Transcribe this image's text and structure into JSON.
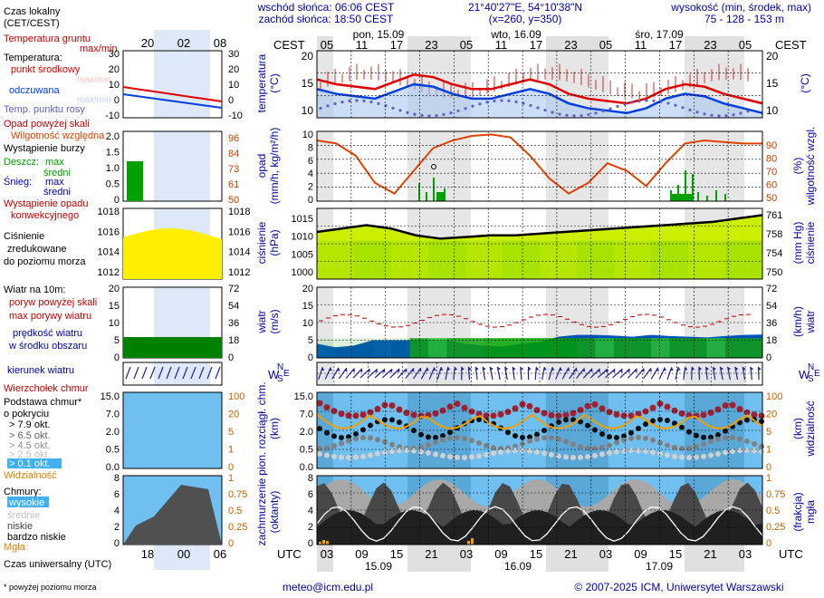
{
  "header": {
    "sunrise": "wschód słońca: 06:06 CEST",
    "sunset": "zachód słońca: 18:50 CEST",
    "coords": "21°40'27\"E, 54°10'38\"N",
    "grid": "(x=260, y=350)",
    "altitude_title": "wysokość (min, środek, max)",
    "altitude_values": "75 - 128 - 153 m"
  },
  "legend": {
    "time_local": "Czas lokalny",
    "time_local_sub": "(CET/CEST)",
    "time_utc": "Czas uniwersalny (UTC)",
    "footnote": "* powyżej poziomu morza",
    "ground_temp": "Temperatura gruntu",
    "ground_temp_sub": "max/min",
    "temp": "Temperatura:",
    "temp_mid": "punkt środkowy",
    "temp_maxmin": "max/min",
    "perceived": "odczuwana",
    "perceived_maxmin": "max/min",
    "dew": "Temp. punktu rosy",
    "precip_over": "Opad powyżej skali",
    "humidity": "Wilgotność względna",
    "storm": "Wystąpienie burzy",
    "rain": "Deszcz:",
    "rain_max": "max",
    "rain_avg": "średni",
    "snow": "Śnieg:",
    "snow_max": "max",
    "snow_avg": "średni",
    "conv1": "Wystąpienie opadu",
    "conv2": "konwekcyjnego",
    "press1": "Ciśnienie",
    "press2": "zredukowane",
    "press3": "do poziomu morza",
    "wind": "Wiatr na 10m:",
    "gust_over": "poryw powyżej skali",
    "gust_max": "max porywy wiatru",
    "wind_speed1": "prędkość wiatru",
    "wind_speed2": "w środku obszaru",
    "wind_dir": "kierunek wiatru",
    "cloud_top": "Wierzchołek chmur",
    "cloud_base": "Podstawa chmur*",
    "cloud_base_sub": "o pokryciu",
    "okt79": "> 7.9 okt.",
    "okt65": "> 6.5 okt.",
    "okt45": "> 4.5 okt.",
    "okt25": "> 2.5 okt.",
    "okt01": "> 0.1 okt.",
    "visibility": "Widzialność",
    "clouds": "Chmury:",
    "cl_high": "wysokie",
    "cl_mid": "średnie",
    "cl_low": "niskie",
    "cl_vlow": "bardzo niskie",
    "fog": "Mgła"
  },
  "timeline": {
    "cest_label": "CEST",
    "utc_label": "UTC",
    "local_hours": [
      "05",
      "11",
      "17",
      "23",
      "05",
      "11",
      "17",
      "23",
      "05",
      "11",
      "17",
      "23",
      "05"
    ],
    "utc_hours": [
      "03",
      "09",
      "15",
      "21",
      "03",
      "09",
      "15",
      "21",
      "03",
      "09",
      "15",
      "21",
      "03"
    ],
    "days_local": [
      "pon, 15.09",
      "wto, 16.09",
      "śro, 17.09"
    ],
    "days_utc": [
      "15.09",
      "16.09",
      "17.09"
    ],
    "preview_local": [
      "20",
      "02",
      "08"
    ],
    "preview_utc": [
      "18",
      "00",
      "06"
    ]
  },
  "panels": {
    "temperature": {
      "left_label": "temperatura",
      "left_unit": "(°C)",
      "right_label": "(°C)",
      "ticks": [
        "20",
        "15",
        "10"
      ],
      "ticks_small": [
        "30",
        "20",
        "10",
        "0",
        "-10"
      ]
    },
    "precip": {
      "left_label": "opad",
      "left_unit": "(mm/h, kg/m²/h)",
      "right_label": "wilgotność wzgl.",
      "right_unit": "(%)",
      "ticks_left": [
        "10",
        "8",
        "6",
        "4",
        "2",
        "0"
      ],
      "ticks_right": [
        "90",
        "80",
        "70",
        "60",
        "50"
      ],
      "small_left": [
        "2.0",
        "1.5",
        "1.0",
        "0.5",
        "0"
      ],
      "small_right": [
        "96",
        "84",
        "73",
        "61",
        "50"
      ]
    },
    "pressure": {
      "left_label": "ciśnienie",
      "left_unit": "(hPa)",
      "right_label": "ciśnienie",
      "right_unit": "(mm Hg)",
      "ticks_left": [
        "1015",
        "1010",
        "1005",
        "1000"
      ],
      "ticks_right": [
        "761",
        "758",
        "754",
        "750"
      ],
      "small_left": [
        "1018",
        "1016",
        "1014",
        "1012"
      ],
      "small_right": [
        "1018",
        "1016",
        "1014",
        "1012"
      ]
    },
    "wind": {
      "left_label": "wiatr",
      "left_unit": "(m/s)",
      "right_label": "wiatr",
      "right_unit": "(km/h)",
      "ticks_left": [
        "20",
        "15",
        "10",
        "5",
        "0"
      ],
      "ticks_right": [
        "72",
        "54",
        "36",
        "18",
        "0"
      ]
    },
    "winddir": {
      "compass": "WSNE"
    },
    "cloudbase": {
      "left_label": "pion. rozciągł. chm.",
      "left_unit": "(km)",
      "right_label": "widzialność",
      "right_unit": "(km)",
      "ticks_left": [
        "15.0",
        "7.0",
        "2.0",
        "0.5",
        "0.0"
      ],
      "ticks_right": [
        "100",
        "20",
        "5",
        "1",
        "0"
      ]
    },
    "clouds": {
      "left_label": "zachmurzenie",
      "left_unit": "(oktanty)",
      "right_label": "mgła",
      "right_unit": "(frakcja)",
      "ticks_left": [
        "8",
        "6",
        "4",
        "2",
        "0"
      ],
      "ticks_right": [
        "1",
        "0.75",
        "0.5",
        "0.25",
        "0"
      ]
    }
  },
  "footer": {
    "email": "meteo@icm.edu.pl",
    "copyright": "© 2007-2025 ICM, Uniwersytet Warszawski"
  },
  "colors": {
    "temp": "#e00000",
    "perceived": "#0040e0",
    "dew": "#6060c0",
    "humidity": "#e04000",
    "pressure_fill": "#ccee00",
    "wind_green": "#00aa00",
    "wind_blue": "#0050c0",
    "sky": "#6fc0f0",
    "cloud_dark": "#404040"
  },
  "chart_data": {
    "type": "line",
    "series": [
      {
        "name": "punkt środkowy",
        "values": [
          16,
          15,
          14.5,
          14,
          15.5,
          17,
          16.5,
          15,
          14,
          14,
          15,
          16,
          15,
          13,
          12,
          11.5,
          11,
          12,
          14,
          15,
          14.5,
          13,
          12,
          11
        ]
      },
      {
        "name": "odczuwana",
        "values": [
          14,
          13,
          12.5,
          12,
          13.5,
          15,
          14.5,
          13,
          12,
          12,
          13,
          14,
          13,
          11,
          10,
          9.5,
          9,
          10,
          12,
          13,
          12.5,
          11,
          10,
          9
        ]
      },
      {
        "name": "Wilgotność względna",
        "values": [
          90,
          88,
          80,
          62,
          55,
          70,
          85,
          90,
          93,
          94,
          92,
          80,
          65,
          55,
          62,
          75,
          70,
          60,
          75,
          88,
          90,
          89,
          88,
          88
        ]
      },
      {
        "name": "Ciśnienie",
        "values": [
          1011,
          1012,
          1013,
          1012,
          1010,
          1009,
          1009.5,
          1010,
          1010,
          1010.5,
          1011,
          1011.5,
          1012,
          1012.5,
          1013,
          1013.5,
          1014,
          1015,
          1016
        ]
      }
    ]
  }
}
